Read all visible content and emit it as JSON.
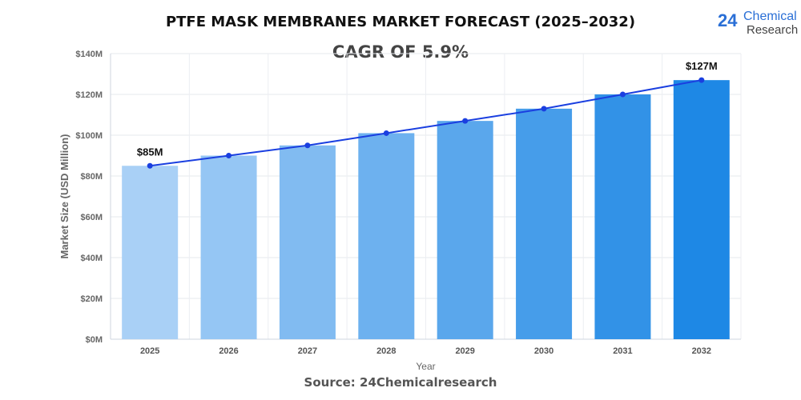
{
  "title": "PTFE MASK MEMBRANES MARKET FORECAST (2025–2032)",
  "subtitle": "CAGR OF 5.9%",
  "source": "Source: 24Chemicalresearch",
  "logo": {
    "number": "24",
    "line1": "Chemical",
    "line2": "Research"
  },
  "chart_data": {
    "type": "bar",
    "title": "PTFE MASK MEMBRANES MARKET FORECAST (2025–2032)",
    "xlabel": "Year",
    "ylabel": "Market Size (USD Million)",
    "categories": [
      "2025",
      "2026",
      "2027",
      "2028",
      "2029",
      "2030",
      "2031",
      "2032"
    ],
    "values": [
      85,
      90,
      95,
      101,
      107,
      113,
      120,
      127
    ],
    "ylim": [
      0,
      140
    ],
    "yticks": [
      0,
      20,
      40,
      60,
      80,
      100,
      120,
      140
    ],
    "ytick_labels": [
      "$0M",
      "$20M",
      "$40M",
      "$60M",
      "$80M",
      "$100M",
      "$120M",
      "$140M"
    ],
    "data_labels": [
      {
        "index": 0,
        "text": "$85M"
      },
      {
        "index": 7,
        "text": "$127M"
      }
    ],
    "trend_line": true,
    "grid": true,
    "colors": {
      "bar_start": "#a9d0f6",
      "bar_end": "#1e88e5",
      "line": "#1a3fe0"
    }
  }
}
